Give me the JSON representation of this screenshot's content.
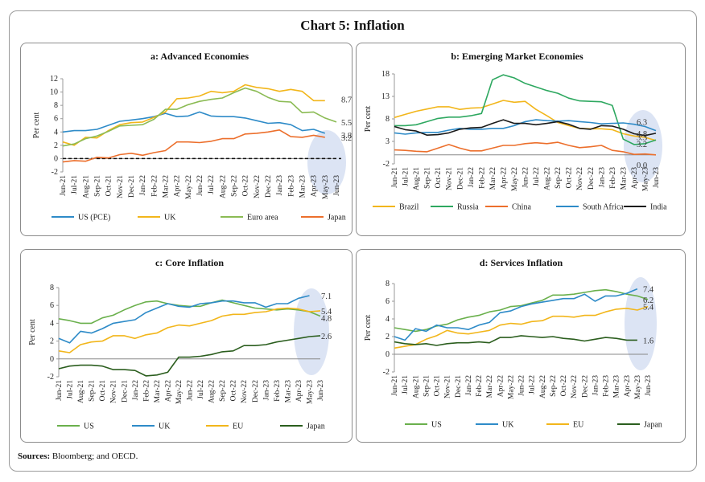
{
  "title": "Chart 5: Inflation",
  "sources": {
    "label": "Sources:",
    "text": "Bloomberg; and OECD."
  },
  "chart_data": [
    {
      "type": "line",
      "title": "a: Advanced Economies",
      "ylabel": "Per cent",
      "ylim": [
        -2,
        12
      ],
      "yticks": [
        -2,
        0,
        2,
        4,
        6,
        8,
        10,
        12
      ],
      "dashed_zero": true,
      "x": [
        "Jun-21",
        "Jul-21",
        "Aug-21",
        "Sep-21",
        "Oct-21",
        "Nov-21",
        "Dec-21",
        "Jan-22",
        "Feb-22",
        "Mar-22",
        "Apr-22",
        "May-22",
        "Jun-22",
        "Jul-22",
        "Aug-22",
        "Sep-22",
        "Oct-22",
        "Nov-22",
        "Dec-22",
        "Jan-23",
        "Feb-23",
        "Mar-23",
        "Apr-23",
        "May-23",
        "Jun-23"
      ],
      "xticks": [
        "Jun-21",
        "Aug-21",
        "Oct-21",
        "Dec-21",
        "Feb-22",
        "Apr-22",
        "Jun-22",
        "Aug-22",
        "Oct-22",
        "Dec-22",
        "Feb-23",
        "Apr-23",
        "Jun-23"
      ],
      "xticks2": [
        "Jul-21",
        "Sep-21",
        "Nov-21",
        "Jan-22",
        "Mar-22",
        "May-22",
        "Jul-22",
        "Sep-22",
        "Nov-22",
        "Jan-23",
        "Mar-23",
        "May-23"
      ],
      "series": [
        {
          "name": "US (PCE)",
          "color": "#2e8bc8",
          "values": [
            4.0,
            4.2,
            4.2,
            4.4,
            5.0,
            5.6,
            5.8,
            6.0,
            6.3,
            6.8,
            6.3,
            6.4,
            7.0,
            6.4,
            6.3,
            6.3,
            6.1,
            5.7,
            5.3,
            5.4,
            5.1,
            4.2,
            4.4,
            3.8,
            null
          ]
        },
        {
          "name": "UK",
          "color": "#f2b61b",
          "values": [
            2.5,
            2.0,
            3.2,
            3.1,
            4.2,
            5.1,
            5.4,
            5.5,
            6.2,
            7.0,
            9.0,
            9.1,
            9.4,
            10.1,
            9.9,
            10.1,
            11.1,
            10.7,
            10.5,
            10.1,
            10.4,
            10.1,
            8.7,
            8.7,
            null
          ]
        },
        {
          "name": "Euro area",
          "color": "#8bbb54",
          "values": [
            1.9,
            2.2,
            3.0,
            3.4,
            4.1,
            4.9,
            5.0,
            5.1,
            5.9,
            7.4,
            7.4,
            8.1,
            8.6,
            8.9,
            9.1,
            9.9,
            10.6,
            10.1,
            9.2,
            8.6,
            8.5,
            6.9,
            7.0,
            6.1,
            5.5
          ]
        },
        {
          "name": "Japan",
          "color": "#ec6f2c",
          "values": [
            -0.5,
            -0.3,
            -0.4,
            0.2,
            0.1,
            0.6,
            0.8,
            0.5,
            0.9,
            1.2,
            2.5,
            2.5,
            2.4,
            2.6,
            3.0,
            3.0,
            3.7,
            3.8,
            4.0,
            4.3,
            3.3,
            3.2,
            3.5,
            3.2,
            null
          ]
        }
      ],
      "end_labels": [
        {
          "text": "8.7",
          "color": "#333333",
          "value": 8.7
        },
        {
          "text": "5.5",
          "color": "#333333",
          "value": 5.5
        },
        {
          "text": "3.8",
          "color": "#333333",
          "value": 3.8
        },
        {
          "text": "3.2",
          "color": "#333333",
          "value": 3.2
        }
      ]
    },
    {
      "type": "line",
      "title": "b: Emerging Market Economies",
      "ylabel": "Per cent",
      "ylim": [
        -2,
        18
      ],
      "yticks": [
        -2,
        3,
        8,
        13,
        18
      ],
      "dashed_zero": false,
      "x": [
        "Jun-21",
        "Jul-21",
        "Aug-21",
        "Sep-21",
        "Oct-21",
        "Nov-21",
        "Dec-21",
        "Jan-22",
        "Feb-22",
        "Mar-22",
        "Apr-22",
        "May-22",
        "Jun-22",
        "Jul-22",
        "Aug-22",
        "Sep-22",
        "Oct-22",
        "Nov-22",
        "Dec-22",
        "Jan-23",
        "Feb-23",
        "Mar-23",
        "Apr-23",
        "May-23",
        "Jun-23"
      ],
      "xticks": [
        "Jun-21",
        "Aug-21",
        "Oct-21",
        "Dec-21",
        "Feb-22",
        "Apr-22",
        "Jun-22",
        "Aug-22",
        "Oct-22",
        "Dec-22",
        "Feb-23",
        "Apr-23",
        "Jun-23"
      ],
      "xticks2": [
        "Jul-21",
        "Sep-21",
        "Nov-21",
        "Jan-22",
        "Mar-22",
        "May-22",
        "Jul-22",
        "Sep-22",
        "Nov-22",
        "Jan-23",
        "Mar-23",
        "May-23"
      ],
      "series": [
        {
          "name": "Brazil",
          "color": "#f2b61b",
          "values": [
            8.3,
            9.0,
            9.7,
            10.2,
            10.7,
            10.7,
            10.1,
            10.4,
            10.5,
            11.3,
            12.1,
            11.7,
            11.9,
            10.1,
            8.7,
            7.2,
            6.5,
            5.9,
            5.8,
            5.8,
            5.6,
            4.7,
            4.2,
            3.9,
            3.2
          ]
        },
        {
          "name": "Russia",
          "color": "#2ea860",
          "values": [
            6.5,
            6.5,
            6.7,
            7.4,
            8.1,
            8.4,
            8.4,
            8.7,
            9.2,
            16.7,
            17.8,
            17.1,
            15.9,
            15.1,
            14.3,
            13.7,
            12.6,
            12.0,
            11.9,
            11.8,
            11.0,
            3.5,
            2.3,
            2.5,
            3.3
          ]
        },
        {
          "name": "China",
          "color": "#ec6f2c",
          "values": [
            1.1,
            1.0,
            0.8,
            0.7,
            1.5,
            2.3,
            1.5,
            0.9,
            0.9,
            1.5,
            2.1,
            2.1,
            2.5,
            2.7,
            2.5,
            2.8,
            2.1,
            1.6,
            1.8,
            2.1,
            1.0,
            0.7,
            0.1,
            0.2,
            0.0
          ]
        },
        {
          "name": "South Africa",
          "color": "#2e8bc8",
          "values": [
            4.9,
            4.6,
            4.9,
            5.0,
            5.0,
            5.5,
            5.9,
            5.7,
            5.7,
            5.9,
            5.9,
            6.5,
            7.4,
            7.8,
            7.6,
            7.5,
            7.6,
            7.4,
            7.2,
            6.9,
            7.0,
            7.1,
            6.8,
            6.3,
            5.4
          ]
        },
        {
          "name": "India",
          "color": "#1a1a1a",
          "values": [
            6.3,
            5.6,
            5.3,
            4.4,
            4.5,
            4.9,
            5.7,
            6.0,
            6.1,
            7.0,
            7.8,
            7.0,
            7.0,
            6.7,
            7.0,
            7.4,
            6.8,
            5.9,
            5.7,
            6.5,
            6.4,
            5.7,
            4.7,
            4.3,
            4.8
          ]
        }
      ],
      "end_labels": [
        {
          "text": "6.3",
          "color": "#333333",
          "value": 6.3
        },
        {
          "text": "4.8",
          "color": "#333333",
          "value": 4.8
        },
        {
          "text": "3.3",
          "color": "#333333",
          "value": 3.3
        },
        {
          "text": "3.2",
          "color": "#333333",
          "value": 3.2
        },
        {
          "text": "0.0",
          "color": "#333333",
          "value": 0.0
        }
      ]
    },
    {
      "type": "line",
      "title": "c: Core Inflation",
      "ylabel": "Per cent",
      "ylim": [
        -2,
        8
      ],
      "yticks": [
        -2,
        0,
        2,
        4,
        6,
        8
      ],
      "dashed_zero": false,
      "x": [
        "Jun-21",
        "Jul-21",
        "Aug-21",
        "Sep-21",
        "Oct-21",
        "Nov-21",
        "Dec-21",
        "Jan-22",
        "Feb-22",
        "Mar-22",
        "Apr-22",
        "May-22",
        "Jun-22",
        "Jul-22",
        "Aug-22",
        "Sep-22",
        "Oct-22",
        "Nov-22",
        "Dec-22",
        "Jan-23",
        "Feb-23",
        "Mar-23",
        "Apr-23",
        "May-23",
        "Jun-23"
      ],
      "xticks": [
        "Jun-21",
        "Aug-21",
        "Oct-21",
        "Dec-21",
        "Feb-22",
        "Apr-22",
        "Jun-22",
        "Aug-22",
        "Oct-22",
        "Dec-22",
        "Feb-23",
        "Apr-23",
        "Jun-23"
      ],
      "xticks2": [
        "Jul-21",
        "Sep-21",
        "Nov-21",
        "Jan-22",
        "Mar-22",
        "May-22",
        "Jul-22",
        "Sep-22",
        "Nov-22",
        "Jan-23",
        "Mar-23",
        "May-23"
      ],
      "series": [
        {
          "name": "US",
          "color": "#6ab04c",
          "values": [
            4.5,
            4.3,
            4.0,
            4.0,
            4.6,
            4.9,
            5.5,
            6.0,
            6.4,
            6.5,
            6.2,
            6.0,
            5.9,
            5.9,
            6.3,
            6.6,
            6.3,
            6.0,
            5.7,
            5.6,
            5.5,
            5.6,
            5.5,
            5.3,
            4.8
          ]
        },
        {
          "name": "UK",
          "color": "#2e8bc8",
          "values": [
            2.3,
            1.8,
            3.1,
            2.9,
            3.4,
            4.0,
            4.2,
            4.4,
            5.2,
            5.7,
            6.2,
            5.9,
            5.8,
            6.2,
            6.3,
            6.5,
            6.5,
            6.3,
            6.3,
            5.8,
            6.2,
            6.2,
            6.8,
            7.1,
            null
          ]
        },
        {
          "name": "EU",
          "color": "#f2b61b",
          "values": [
            0.9,
            0.7,
            1.6,
            1.9,
            2.0,
            2.6,
            2.6,
            2.3,
            2.7,
            2.9,
            3.5,
            3.8,
            3.7,
            4.0,
            4.3,
            4.8,
            5.0,
            5.0,
            5.2,
            5.3,
            5.6,
            5.7,
            5.6,
            5.3,
            5.4
          ]
        },
        {
          "name": "Japan",
          "color": "#2b5e1e",
          "values": [
            -1.1,
            -0.8,
            -0.7,
            -0.7,
            -0.8,
            -1.2,
            -1.2,
            -1.3,
            -1.9,
            -1.8,
            -1.5,
            0.2,
            0.2,
            0.3,
            0.5,
            0.8,
            0.9,
            1.5,
            1.5,
            1.6,
            1.9,
            2.1,
            2.3,
            2.5,
            2.6
          ]
        }
      ],
      "end_labels": [
        {
          "text": "7.1",
          "color": "#333333",
          "value": 7.1
        },
        {
          "text": "5.4",
          "color": "#333333",
          "value": 5.4
        },
        {
          "text": "4.8",
          "color": "#333333",
          "value": 4.8
        },
        {
          "text": "2.6",
          "color": "#333333",
          "value": 2.6
        }
      ]
    },
    {
      "type": "line",
      "title": "d: Services Inflation",
      "ylabel": "Per cent",
      "ylim": [
        -2,
        8
      ],
      "yticks": [
        -2,
        0,
        2,
        4,
        6,
        8
      ],
      "dashed_zero": false,
      "x": [
        "Jun-21",
        "Jul-21",
        "Aug-21",
        "Sep-21",
        "Oct-21",
        "Nov-21",
        "Dec-21",
        "Jan-22",
        "Feb-22",
        "Mar-22",
        "Apr-22",
        "May-22",
        "Jun-22",
        "Jul-22",
        "Aug-22",
        "Sep-22",
        "Oct-22",
        "Nov-22",
        "Dec-22",
        "Jan-23",
        "Feb-23",
        "Mar-23",
        "Apr-23",
        "May-23",
        "Jun-23"
      ],
      "xticks": [
        "Jun-21",
        "Aug-21",
        "Oct-21",
        "Dec-21",
        "Feb-22",
        "Apr-22",
        "Jun-22",
        "Aug-22",
        "Oct-22",
        "Dec-22",
        "Feb-23",
        "Apr-23",
        "Jun-23"
      ],
      "xticks2": [
        "Jul-21",
        "Sep-21",
        "Nov-21",
        "Jan-22",
        "Mar-22",
        "May-22",
        "Jul-22",
        "Sep-22",
        "Nov-22",
        "Jan-23",
        "Mar-23",
        "May-23"
      ],
      "series": [
        {
          "name": "US",
          "color": "#6ab04c",
          "values": [
            3.0,
            2.8,
            2.6,
            2.8,
            3.2,
            3.4,
            3.9,
            4.2,
            4.4,
            4.8,
            5.0,
            5.4,
            5.5,
            5.8,
            6.1,
            6.7,
            6.7,
            6.8,
            7.0,
            7.2,
            7.3,
            7.1,
            6.8,
            6.6,
            6.2
          ]
        },
        {
          "name": "UK",
          "color": "#2e8bc8",
          "values": [
            2.0,
            1.6,
            2.9,
            2.6,
            3.3,
            3.0,
            3.0,
            2.8,
            3.3,
            3.6,
            4.7,
            4.9,
            5.4,
            5.7,
            5.9,
            6.1,
            6.3,
            6.3,
            6.8,
            6.0,
            6.6,
            6.6,
            6.9,
            7.4,
            null
          ]
        },
        {
          "name": "EU",
          "color": "#f2b61b",
          "values": [
            0.7,
            0.9,
            1.1,
            1.7,
            2.1,
            2.7,
            2.4,
            2.3,
            2.5,
            2.7,
            3.3,
            3.5,
            3.4,
            3.7,
            3.8,
            4.3,
            4.3,
            4.2,
            4.4,
            4.4,
            4.8,
            5.1,
            5.2,
            5.0,
            5.4
          ]
        },
        {
          "name": "Japan",
          "color": "#2b5e1e",
          "values": [
            1.4,
            1.2,
            1.1,
            1.2,
            1.0,
            1.2,
            1.3,
            1.3,
            1.4,
            1.3,
            1.9,
            1.9,
            2.1,
            2.0,
            1.9,
            2.0,
            1.8,
            1.7,
            1.5,
            1.7,
            1.9,
            1.8,
            1.6,
            1.6,
            null
          ]
        }
      ],
      "end_labels": [
        {
          "text": "7.4",
          "color": "#333333",
          "value": 7.4
        },
        {
          "text": "6.2",
          "color": "#333333",
          "value": 6.2
        },
        {
          "text": "5.4",
          "color": "#333333",
          "value": 5.4
        },
        {
          "text": "1.6",
          "color": "#333333",
          "value": 1.6
        }
      ]
    }
  ]
}
